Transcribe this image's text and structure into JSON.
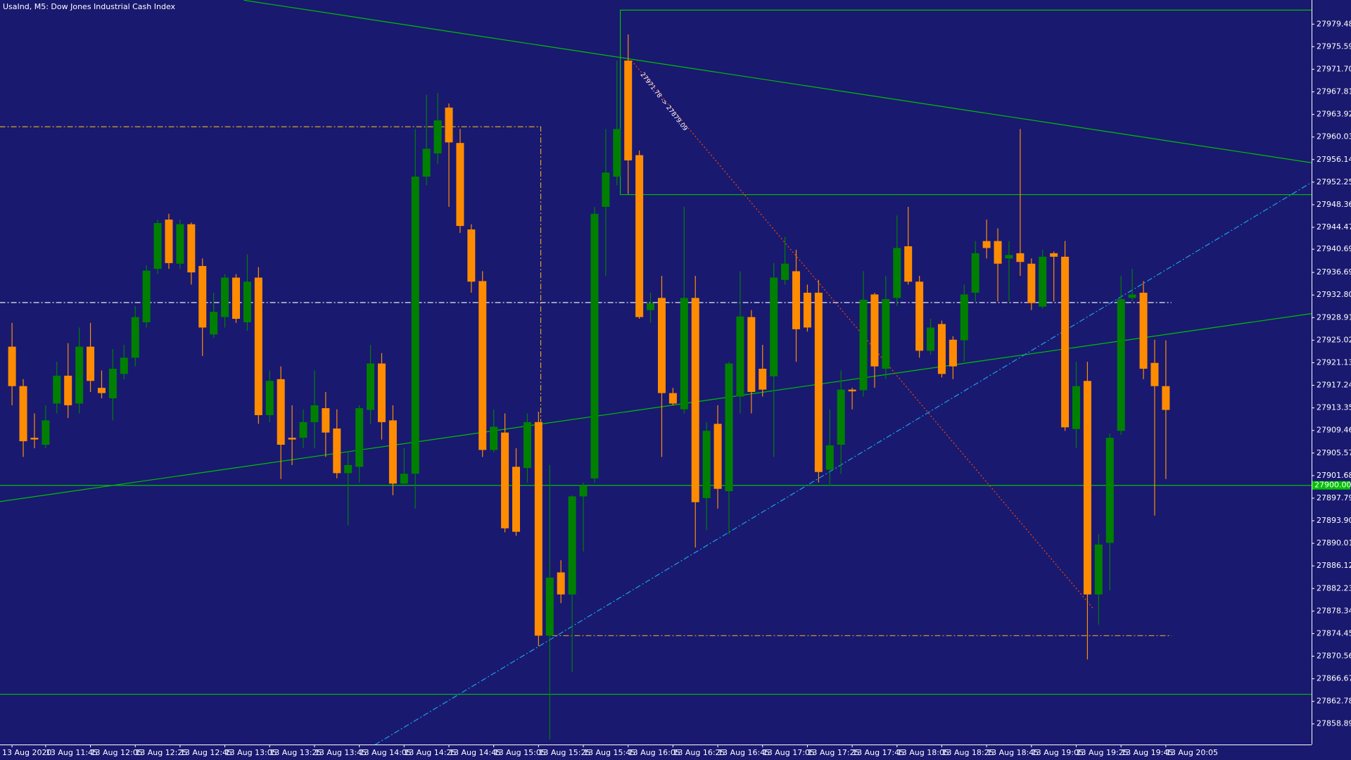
{
  "chart_data": {
    "type": "candlestick",
    "title": "UsaInd, M5:  Dow Jones Industrial Cash Index",
    "categories": [
      "13 Aug 2020",
      null,
      null,
      "13 Aug 11:45",
      null,
      null,
      null,
      "13 Aug 12:05",
      null,
      null,
      null,
      "13 Aug 12:25",
      null,
      null,
      null,
      "13 Aug 12:45",
      null,
      null,
      null,
      "13 Aug 13:05",
      null,
      null,
      null,
      "13 Aug 13:25",
      null,
      null,
      null,
      "13 Aug 13:45",
      null,
      null,
      null,
      "13 Aug 14:05",
      null,
      null,
      null,
      "13 Aug 14:25",
      null,
      null,
      null,
      "13 Aug 14:45",
      null,
      null,
      null,
      "13 Aug 15:05",
      null,
      null,
      null,
      "13 Aug 15:25",
      null,
      null,
      null,
      "13 Aug 15:45",
      null,
      null,
      null,
      "13 Aug 16:05",
      null,
      null,
      null,
      "13 Aug 16:25",
      null,
      null,
      null,
      "13 Aug 16:45",
      null,
      null,
      null,
      "13 Aug 17:05",
      null,
      null,
      null,
      "13 Aug 17:25",
      null,
      null,
      null,
      "13 Aug 17:45",
      null,
      null,
      null,
      "13 Aug 18:05",
      null,
      null,
      null,
      "13 Aug 18:25",
      null,
      null,
      null,
      "13 Aug 18:45",
      null,
      null,
      null,
      "13 Aug 19:05",
      null,
      null,
      null,
      "13 Aug 19:25",
      null,
      null,
      null,
      "13 Aug 19:45",
      null,
      null,
      null,
      "13 Aug 20:05"
    ],
    "open": [
      27923.9,
      27917.1,
      27908.2,
      27907.0,
      27914.1,
      27918.9,
      27914.1,
      27923.9,
      27916.8,
      27915.0,
      27919.2,
      27922.0,
      27928.1,
      27937.3,
      27945.8,
      27938.2,
      27945.0,
      27937.8,
      27926.0,
      27929.0,
      27935.8,
      27928.1,
      27935.8,
      27912.1,
      27918.3,
      27908.2,
      27908.2,
      27910.9,
      27913.3,
      27909.8,
      27902.1,
      27903.2,
      27913.0,
      27921.0,
      27911.2,
      27900.3,
      27902.0,
      27953.2,
      27957.2,
      27965.1,
      27959.0,
      27944.1,
      27935.2,
      27906.1,
      27909.1,
      27903.2,
      27903.0,
      27910.9,
      27874.1,
      27885.0,
      27881.2,
      27898.1,
      27901.2,
      27948.0,
      27953.2,
      27973.2,
      27956.9,
      27930.2,
      27932.3,
      27915.9,
      27913.1,
      27932.3,
      27897.8,
      27910.6,
      27899.0,
      27915.3,
      27929.0,
      27920.1,
      27918.8,
      27935.4,
      27936.9,
      27933.2,
      27933.2,
      27902.7,
      27907.0,
      27916.5,
      27916.4,
      27932.9,
      27920.1,
      27932.3,
      27941.2,
      27935.1,
      27923.2,
      27927.8,
      27925.1,
      27925.0,
      27933.2,
      27942.1,
      27942.1,
      27939.1,
      27940.0,
      27938.2,
      27930.8,
      27940.0,
      27939.4,
      27909.7,
      27918.0,
      27881.2,
      27890.1,
      27909.4,
      27932.3,
      27933.2,
      27921.1,
      27917.1
    ],
    "high": [
      27928.0,
      27918.3,
      27912.4,
      27913.8,
      27921.3,
      27924.5,
      27927.2,
      27928.0,
      27919.8,
      27923.5,
      27924.2,
      27930.9,
      27937.9,
      27945.8,
      27946.8,
      27945.8,
      27945.3,
      27939.1,
      27933.2,
      27936.4,
      27936.4,
      27939.8,
      27937.6,
      27919.8,
      27920.5,
      27913.8,
      27913.1,
      27919.8,
      27916.1,
      27913.1,
      27905.7,
      27913.8,
      27924.2,
      27922.8,
      27913.8,
      27906.4,
      27961.4,
      27967.3,
      27967.6,
      27965.8,
      27961.4,
      27945.0,
      27936.9,
      27913.1,
      27912.4,
      27906.4,
      27912.4,
      27912.7,
      27903.5,
      27887.1,
      27898.3,
      27900.5,
      27948.0,
      27961.4,
      27973.2,
      27977.7,
      27957.7,
      27933.2,
      27936.1,
      27916.8,
      27948.0,
      27936.1,
      27910.9,
      27913.8,
      27921.3,
      27936.9,
      27930.2,
      27924.2,
      27938.3,
      27942.8,
      27940.6,
      27934.6,
      27935.4,
      27913.1,
      27919.8,
      27916.8,
      27936.9,
      27933.2,
      27936.1,
      27946.5,
      27948.0,
      27936.1,
      27928.7,
      27928.4,
      27925.7,
      27934.6,
      27942.1,
      27945.8,
      27944.3,
      27942.1,
      27961.4,
      27939.1,
      27940.6,
      27940.3,
      27942.1,
      27921.3,
      27921.3,
      27891.6,
      27908.9,
      27936.1,
      27937.3,
      27935.2,
      27925.1,
      27925.0
    ],
    "low": [
      27913.8,
      27904.9,
      27906.4,
      27906.4,
      27912.4,
      27911.6,
      27912.4,
      27916.1,
      27915.0,
      27911.2,
      27918.3,
      27920.5,
      27927.2,
      27936.4,
      27937.3,
      27937.3,
      27934.6,
      27922.3,
      27925.4,
      27927.2,
      27928.0,
      27926.6,
      27910.6,
      27910.9,
      27901.1,
      27903.5,
      27906.4,
      27906.4,
      27904.9,
      27901.2,
      27893.1,
      27900.5,
      27910.6,
      27907.9,
      27898.3,
      27900.2,
      27896.0,
      27951.7,
      27955.4,
      27948.0,
      27943.5,
      27933.2,
      27904.9,
      27905.7,
      27891.9,
      27891.3,
      27900.5,
      27872.3,
      27856.2,
      27879.7,
      27867.8,
      27888.6,
      27900.5,
      27936.1,
      27951.7,
      27950.2,
      27928.7,
      27928.0,
      27904.9,
      27913.8,
      27912.4,
      27889.3,
      27892.3,
      27896.0,
      27891.6,
      27912.4,
      27912.4,
      27915.3,
      27904.9,
      27934.6,
      27921.3,
      27926.5,
      27900.5,
      27899.9,
      27902.0,
      27913.1,
      27915.3,
      27916.8,
      27918.3,
      27930.9,
      27934.6,
      27922.0,
      27922.5,
      27918.6,
      27918.3,
      27921.3,
      27931.7,
      27939.1,
      27931.7,
      27931.7,
      27936.1,
      27930.2,
      27930.5,
      27931.7,
      27909.4,
      27906.4,
      27870.0,
      27876.0,
      27881.9,
      27908.7,
      27931.7,
      27918.3,
      27894.8,
      27901.1
    ],
    "close": [
      27917.1,
      27907.6,
      27907.9,
      27911.2,
      27918.9,
      27913.8,
      27923.9,
      27918.0,
      27915.9,
      27920.1,
      27922.0,
      27929.0,
      27937.0,
      27945.2,
      27938.3,
      27945.0,
      27936.7,
      27927.2,
      27929.9,
      27935.8,
      27928.7,
      27935.1,
      27912.1,
      27918.0,
      27907.0,
      27907.9,
      27910.9,
      27913.8,
      27909.1,
      27902.1,
      27903.5,
      27913.3,
      27921.0,
      27910.9,
      27900.3,
      27902.0,
      27953.2,
      27958.0,
      27962.9,
      27959.1,
      27944.7,
      27935.1,
      27906.1,
      27910.1,
      27892.6,
      27892.0,
      27910.9,
      27874.1,
      27884.1,
      27881.2,
      27898.1,
      27900.0,
      27946.8,
      27953.9,
      27961.4,
      27956.0,
      27929.0,
      27931.4,
      27915.9,
      27914.1,
      27932.3,
      27897.1,
      27909.4,
      27899.4,
      27921.0,
      27929.1,
      27916.1,
      27916.5,
      27935.8,
      27938.2,
      27926.9,
      27927.2,
      27902.3,
      27906.9,
      27916.5,
      27916.2,
      27932.0,
      27920.5,
      27932.1,
      27940.9,
      27935.1,
      27923.2,
      27927.2,
      27919.2,
      27920.5,
      27932.9,
      27940.0,
      27940.9,
      27938.2,
      27939.7,
      27938.5,
      27931.4,
      27939.4,
      27939.4,
      27910.0,
      27917.1,
      27881.2,
      27889.8,
      27908.2,
      27932.1,
      27932.9,
      27920.1,
      27917.1,
      27913.0
    ],
    "up_color": "#008000",
    "down_color": "#ff8c00",
    "ylim": [
      27855.34,
      27983.64
    ],
    "yticks": [
      27979.48,
      27975.59,
      {
        "value": 27971.7,
        "label": "27971.70"
      },
      27967.81,
      27963.92,
      27960.03,
      27956.14,
      27952.25,
      27948.36,
      27944.47,
      27940.69,
      27936.69,
      {
        "value": 27932.8,
        "label": "27932.80"
      },
      27928.91,
      27925.02,
      27921.13,
      27917.24,
      27913.35,
      27909.46,
      27905.57,
      27901.68,
      27897.79,
      {
        "value": 27893.9,
        "label": "27893.90"
      },
      27890.01,
      27886.12,
      27882.23,
      27878.34,
      27874.45,
      27870.56,
      27866.67,
      27862.78,
      27858.89
    ],
    "price_marker": {
      "value": 27900,
      "label": "27900.00",
      "color": "#00c000"
    },
    "annotation": "27971.78 -> 27879.09",
    "lines": [
      {
        "color": "#00c000",
        "dash": "solid",
        "points": [
          [
            20.7,
            27983.6
          ],
          [
            116.0,
            27955.6
          ]
        ]
      },
      {
        "color": "#00c000",
        "dash": "solid",
        "points": [
          [
            -1.1,
            27897.2
          ],
          [
            116.0,
            27929.6
          ]
        ]
      },
      {
        "color": "#00c000",
        "dash": "solid",
        "points": [
          [
            -1.1,
            27900.0
          ],
          [
            116.0,
            27900.0
          ]
        ]
      },
      {
        "color": "#00c000",
        "dash": "solid",
        "points": [
          [
            -1.1,
            27864.0
          ],
          [
            116.0,
            27864.0
          ]
        ]
      },
      {
        "color": "#00c000",
        "dash": "solid",
        "points": [
          [
            116.0,
            27981.9
          ],
          [
            54.3,
            27981.9
          ],
          [
            54.3,
            27950.1
          ],
          [
            116.0,
            27950.1
          ]
        ]
      },
      {
        "color": "#1e9fe0",
        "dash": "dashdot",
        "points": [
          [
            32.4,
            27855.3
          ],
          [
            116.0,
            27952.2
          ]
        ]
      },
      {
        "color": "#ffffff",
        "dash": "dashdot",
        "points": [
          [
            -1.1,
            27931.5
          ],
          [
            103.5,
            27931.5
          ]
        ]
      },
      {
        "color": "#daa520",
        "dash": "dashdot",
        "points": [
          [
            -1.1,
            27961.8
          ],
          [
            47.2,
            27961.8
          ],
          [
            47.2,
            27874.1
          ]
        ]
      },
      {
        "color": "#daa520",
        "dash": "dashdot",
        "points": [
          [
            48.2,
            27874.1
          ],
          [
            103.5,
            27874.1
          ]
        ]
      },
      {
        "color": "#ff4500",
        "dash": "dot",
        "points": [
          [
            55.3,
            27973.2
          ],
          [
            96.5,
            27878.8
          ]
        ]
      }
    ]
  }
}
